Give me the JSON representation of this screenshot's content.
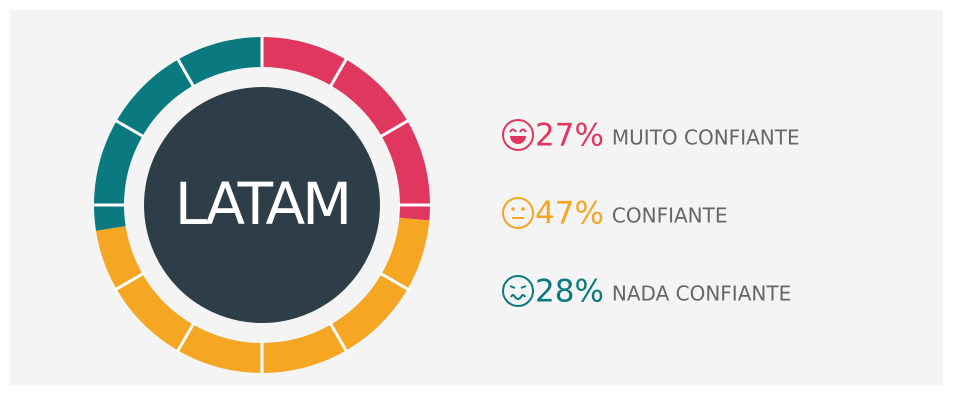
{
  "chart_data": {
    "type": "donut",
    "center_label": "LATAM",
    "categories": [
      "MUITO CONFIANTE",
      "CONFIANTE",
      "NADA CONFIANTE"
    ],
    "values": [
      27,
      47,
      28
    ],
    "value_labels": [
      "27%",
      "47%",
      "28%"
    ],
    "colors": [
      "#e0375f",
      "#f5a623",
      "#0a7a80"
    ]
  }
}
